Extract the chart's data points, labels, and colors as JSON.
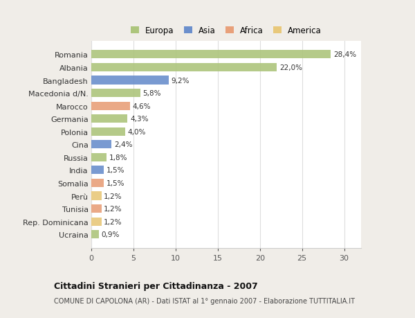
{
  "countries": [
    "Romania",
    "Albania",
    "Bangladesh",
    "Macedonia d/N.",
    "Marocco",
    "Germania",
    "Polonia",
    "Cina",
    "Russia",
    "India",
    "Somalia",
    "Perù",
    "Tunisia",
    "Rep. Dominicana",
    "Ucraina"
  ],
  "values": [
    28.4,
    22.0,
    9.2,
    5.8,
    4.6,
    4.3,
    4.0,
    2.4,
    1.8,
    1.5,
    1.5,
    1.2,
    1.2,
    1.2,
    0.9
  ],
  "labels": [
    "28,4%",
    "22,0%",
    "9,2%",
    "5,8%",
    "4,6%",
    "4,3%",
    "4,0%",
    "2,4%",
    "1,8%",
    "1,5%",
    "1,5%",
    "1,2%",
    "1,2%",
    "1,2%",
    "0,9%"
  ],
  "continents": [
    "Europa",
    "Europa",
    "Asia",
    "Europa",
    "Africa",
    "Europa",
    "Europa",
    "Asia",
    "Europa",
    "Asia",
    "Africa",
    "America",
    "Africa",
    "America",
    "Europa"
  ],
  "colors": {
    "Europa": "#adc57c",
    "Asia": "#6b8fcc",
    "Africa": "#e8a07a",
    "America": "#e8c87a"
  },
  "title_bold": "Cittadini Stranieri per Cittadinanza - 2007",
  "subtitle": "COMUNE DI CAPOLONA (AR) - Dati ISTAT al 1° gennaio 2007 - Elaborazione TUTTITALIA.IT",
  "xlim": [
    0,
    32
  ],
  "xticks": [
    0,
    5,
    10,
    15,
    20,
    25,
    30
  ],
  "background_color": "#f0ede8",
  "plot_bg_color": "#ffffff",
  "grid_color": "#dddddd"
}
